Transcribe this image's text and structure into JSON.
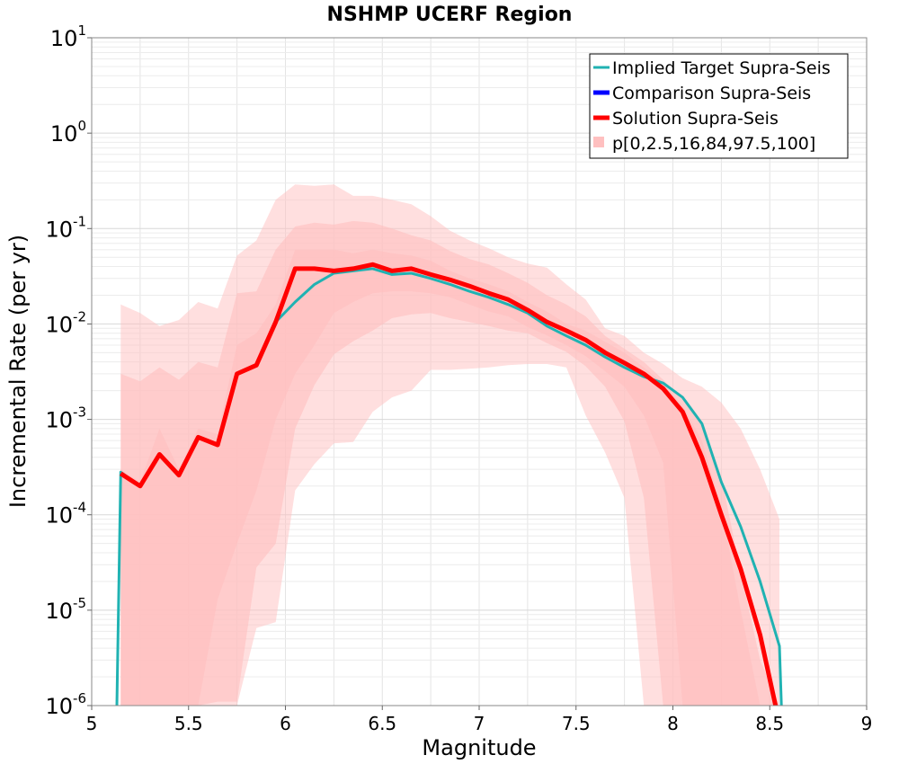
{
  "chart_data": {
    "type": "line",
    "title": "NSHMP UCERF Region",
    "xlabel": "Magnitude",
    "ylabel": "Incremental Rate (per yr)",
    "xlim": [
      5,
      9
    ],
    "ylim": [
      1e-06,
      10
    ],
    "yscale": "log",
    "grid": true,
    "legend_position": "top-right",
    "x_ticks": [
      "5",
      "5.5",
      "6",
      "6.5",
      "7",
      "7.5",
      "8",
      "8.5",
      "9"
    ],
    "y_ticks": [
      {
        "base": "10",
        "exp": "-6",
        "value": 1e-06
      },
      {
        "base": "10",
        "exp": "-5",
        "value": 1e-05
      },
      {
        "base": "10",
        "exp": "-4",
        "value": 0.0001
      },
      {
        "base": "10",
        "exp": "-3",
        "value": 0.001
      },
      {
        "base": "10",
        "exp": "-2",
        "value": 0.01
      },
      {
        "base": "10",
        "exp": "-1",
        "value": 0.1
      },
      {
        "base": "10",
        "exp": "0",
        "value": 1
      },
      {
        "base": "10",
        "exp": "1",
        "value": 10
      }
    ],
    "series": [
      {
        "name": "Implied Target Supra-Seis",
        "color": "#20b2b2",
        "x": [
          5.13,
          5.15,
          5.25,
          5.35,
          5.45,
          5.55,
          5.65,
          5.75,
          5.85,
          5.95,
          6.05,
          6.15,
          6.25,
          6.35,
          6.45,
          6.55,
          6.65,
          6.75,
          6.85,
          6.95,
          7.05,
          7.15,
          7.25,
          7.35,
          7.45,
          7.55,
          7.65,
          7.75,
          7.85,
          7.95,
          8.05,
          8.15,
          8.25,
          8.35,
          8.45,
          8.55,
          8.56
        ],
        "y": [
          1e-06,
          0.00028,
          0.0002,
          0.00043,
          0.00026,
          0.00065,
          0.00055,
          0.003,
          0.0037,
          0.0105,
          0.017,
          0.026,
          0.034,
          0.036,
          0.038,
          0.033,
          0.034,
          0.03,
          0.026,
          0.022,
          0.019,
          0.016,
          0.013,
          0.0095,
          0.0075,
          0.006,
          0.0045,
          0.0035,
          0.0028,
          0.0024,
          0.0017,
          0.0009,
          0.00022,
          7.5e-05,
          2e-05,
          4.2e-06,
          1e-06
        ]
      },
      {
        "name": "Comparison Supra-Seis",
        "color": "#0000ff",
        "x": [],
        "y": []
      },
      {
        "name": "Solution Supra-Seis",
        "color": "#ff0000",
        "x": [
          5.15,
          5.25,
          5.35,
          5.45,
          5.55,
          5.65,
          5.75,
          5.85,
          5.95,
          6.05,
          6.15,
          6.25,
          6.35,
          6.45,
          6.55,
          6.65,
          6.75,
          6.85,
          6.95,
          7.05,
          7.15,
          7.25,
          7.35,
          7.45,
          7.55,
          7.65,
          7.75,
          7.85,
          7.95,
          8.05,
          8.15,
          8.25,
          8.35,
          8.45,
          8.53
        ],
        "y": [
          0.00027,
          0.0002,
          0.00043,
          0.00026,
          0.00065,
          0.00054,
          0.003,
          0.0037,
          0.0105,
          0.038,
          0.038,
          0.036,
          0.038,
          0.042,
          0.036,
          0.038,
          0.033,
          0.029,
          0.025,
          0.021,
          0.018,
          0.014,
          0.0105,
          0.0085,
          0.0068,
          0.005,
          0.0039,
          0.003,
          0.0021,
          0.0012,
          0.0004,
          0.0001,
          2.7e-05,
          5.5e-06,
          1e-06
        ]
      }
    ],
    "bands": {
      "name": "p[0,2.5,16,84,97.5,100]",
      "color": "#ffc0c0",
      "x": [
        5.15,
        5.25,
        5.35,
        5.45,
        5.55,
        5.65,
        5.75,
        5.85,
        5.95,
        6.05,
        6.15,
        6.25,
        6.35,
        6.45,
        6.55,
        6.65,
        6.75,
        6.85,
        6.95,
        7.05,
        7.15,
        7.25,
        7.35,
        7.45,
        7.55,
        7.65,
        7.75,
        7.85,
        7.95,
        8.05,
        8.15,
        8.25,
        8.35,
        8.45,
        8.55
      ],
      "layers": [
        {
          "label": "p0-p100",
          "opacity": 0.5,
          "upper": [
            0.016,
            0.013,
            0.0095,
            0.011,
            0.017,
            0.0145,
            0.052,
            0.075,
            0.2,
            0.29,
            0.28,
            0.29,
            0.22,
            0.22,
            0.2,
            0.18,
            0.135,
            0.095,
            0.075,
            0.062,
            0.05,
            0.043,
            0.039,
            0.026,
            0.018,
            0.009,
            0.0075,
            0.005,
            0.0038,
            0.0027,
            0.0022,
            0.0015,
            0.0008,
            0.0003,
            9e-05
          ],
          "lower": [
            1e-06,
            1e-06,
            1e-06,
            1e-06,
            1e-06,
            1e-06,
            1e-06,
            6.5e-06,
            7.5e-06,
            0.00018,
            0.00034,
            0.00056,
            0.00058,
            0.0012,
            0.0017,
            0.002,
            0.0033,
            0.0033,
            0.0034,
            0.0035,
            0.0037,
            0.0038,
            0.0038,
            0.0035,
            0.0011,
            0.00045,
            0.00015,
            1e-06,
            1e-06,
            1e-06,
            1e-06,
            1e-06,
            1e-06,
            1e-06,
            1e-06
          ]
        },
        {
          "label": "p2.5-p97.5",
          "opacity": 0.6,
          "upper": [
            0.003,
            0.0025,
            0.0035,
            0.0026,
            0.004,
            0.0035,
            0.021,
            0.022,
            0.06,
            0.105,
            0.115,
            0.11,
            0.12,
            0.115,
            0.1,
            0.085,
            0.075,
            0.058,
            0.048,
            0.042,
            0.034,
            0.027,
            0.02,
            0.016,
            0.012,
            0.0075,
            0.0055,
            0.004,
            0.0026,
            0.0016,
            0.0009,
            0.00025,
            2.5e-05,
            3e-06,
            1e-06
          ],
          "lower": [
            1e-06,
            1e-06,
            1e-06,
            1e-06,
            1e-06,
            1.1e-06,
            1.1e-06,
            2.8e-05,
            5e-05,
            0.0008,
            0.0023,
            0.0048,
            0.0066,
            0.0085,
            0.0115,
            0.0126,
            0.013,
            0.0115,
            0.0105,
            0.0095,
            0.0085,
            0.008,
            0.0063,
            0.0051,
            0.0036,
            0.0022,
            0.00095,
            0.00015,
            1e-06,
            1e-06,
            1e-06,
            1e-06,
            1e-06,
            1e-06,
            1e-06
          ]
        },
        {
          "label": "p16-p84",
          "opacity": 0.7,
          "upper": [
            0.0003,
            0.00022,
            0.0008,
            0.0003,
            0.0008,
            0.0007,
            0.006,
            0.008,
            0.016,
            0.06,
            0.06,
            0.06,
            0.055,
            0.06,
            0.055,
            0.052,
            0.046,
            0.036,
            0.03,
            0.026,
            0.022,
            0.017,
            0.0135,
            0.01,
            0.0085,
            0.0065,
            0.005,
            0.0035,
            0.0024,
            0.0014,
            0.0006,
            0.00012,
            1e-05,
            1e-06,
            1e-06
          ],
          "lower": [
            1e-06,
            1e-06,
            1e-06,
            1e-06,
            1e-06,
            1.3e-05,
            5e-05,
            0.00018,
            0.001,
            0.003,
            0.006,
            0.013,
            0.017,
            0.021,
            0.022,
            0.022,
            0.021,
            0.019,
            0.016,
            0.0135,
            0.012,
            0.0093,
            0.0076,
            0.006,
            0.0046,
            0.0032,
            0.0022,
            0.0011,
            0.00035,
            1e-06,
            1e-06,
            1e-06,
            1e-06,
            1e-06,
            1e-06
          ]
        }
      ]
    }
  }
}
